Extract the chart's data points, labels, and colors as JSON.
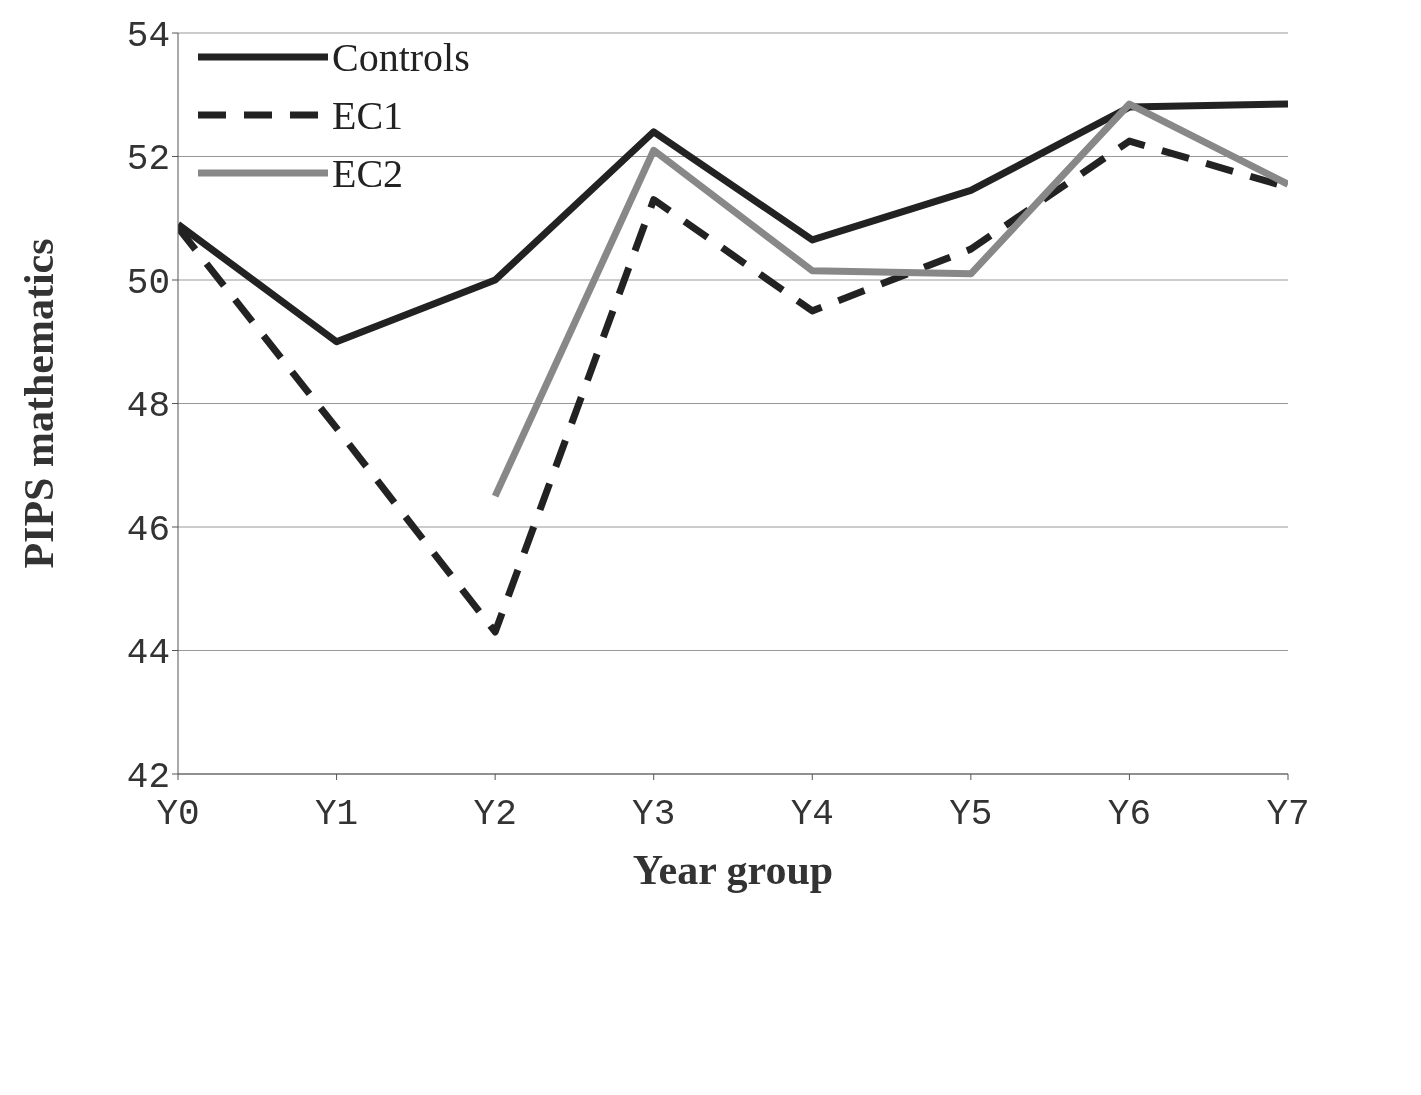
{
  "chart_data": {
    "type": "line",
    "xlabel": "Year group",
    "ylabel": "PIPS mathematics",
    "categories": [
      "Y0",
      "Y1",
      "Y2",
      "Y3",
      "Y4",
      "Y5",
      "Y6",
      "Y7"
    ],
    "series": [
      {
        "name": "Controls",
        "color": "#222222",
        "line_style": "solid",
        "values": [
          50.9,
          49.0,
          50.0,
          52.4,
          50.65,
          51.45,
          52.8,
          52.85
        ]
      },
      {
        "name": "EC1",
        "color": "#222222",
        "line_style": "dashed",
        "values": [
          50.85,
          47.6,
          44.3,
          51.3,
          49.5,
          50.5,
          52.25,
          51.5
        ]
      },
      {
        "name": "EC2",
        "color": "#888888",
        "line_style": "solid",
        "values": [
          null,
          null,
          46.5,
          52.1,
          50.15,
          50.1,
          52.85,
          51.55
        ]
      }
    ],
    "ylim": [
      42,
      54
    ],
    "yticks": [
      42,
      44,
      46,
      48,
      50,
      52,
      54
    ],
    "grid": "y",
    "legend": "top left",
    "marker": "none"
  }
}
